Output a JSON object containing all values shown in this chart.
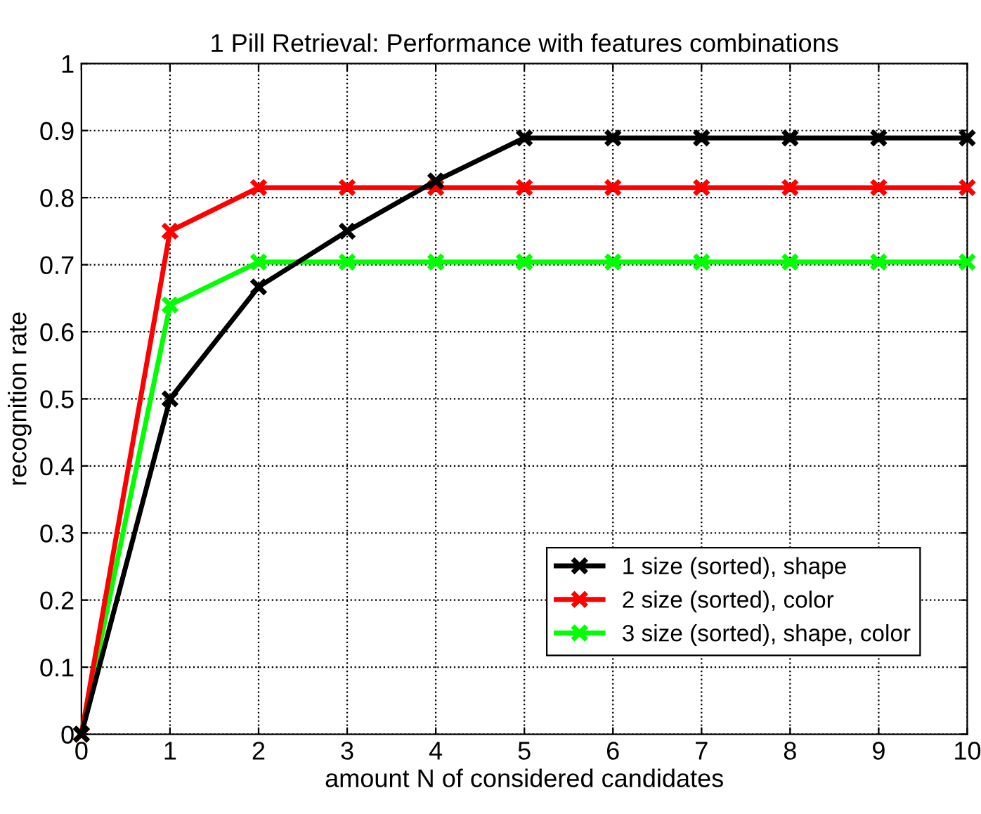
{
  "chart_data": {
    "type": "line",
    "title": "1 Pill Retrieval: Performance with features combinations",
    "xlabel": "amount N of considered candidates",
    "ylabel": "recognition rate",
    "x": [
      0,
      1,
      2,
      3,
      4,
      5,
      6,
      7,
      8,
      9,
      10
    ],
    "series": [
      {
        "name": "1 size (sorted), shape",
        "color": "#000000",
        "values": [
          0,
          0.5,
          0.667,
          0.75,
          0.825,
          0.889,
          0.889,
          0.889,
          0.889,
          0.889,
          0.889
        ]
      },
      {
        "name": "2 size (sorted), color",
        "color": "#ff0000",
        "values": [
          0,
          0.75,
          0.815,
          0.815,
          0.815,
          0.815,
          0.815,
          0.815,
          0.815,
          0.815,
          0.815
        ]
      },
      {
        "name": "3 size (sorted), shape, color",
        "color": "#00ff00",
        "values": [
          0,
          0.64,
          0.704,
          0.704,
          0.704,
          0.704,
          0.704,
          0.704,
          0.704,
          0.704,
          0.704
        ]
      }
    ],
    "xlim": [
      0,
      10
    ],
    "xticks": [
      0,
      1,
      2,
      3,
      4,
      5,
      6,
      7,
      8,
      9,
      10
    ],
    "ylim": [
      0,
      1
    ],
    "yticks": [
      0,
      0.1,
      0.2,
      0.3,
      0.4,
      0.5,
      0.6,
      0.7,
      0.8,
      0.9,
      1
    ],
    "grid": true,
    "legend": "lower right",
    "marker": "cross",
    "line_style": "solid"
  }
}
